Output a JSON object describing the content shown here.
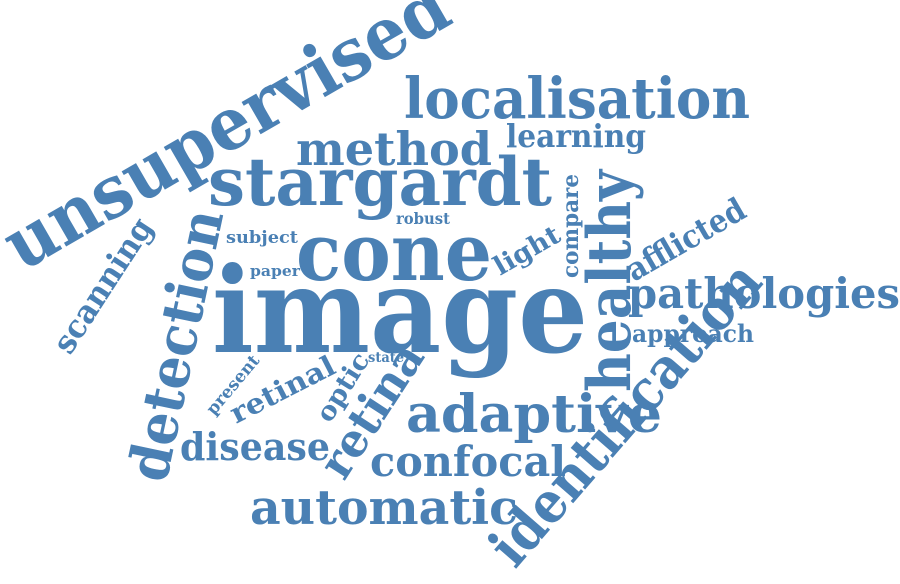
{
  "colors": {
    "word": "#4a80b4",
    "background": "#ffffff"
  },
  "words": {
    "image": "image",
    "cone": "cone",
    "stargardt": "stargardt",
    "unsupervised": "unsupervised",
    "localisation": "localisation",
    "method": "method",
    "learning": "learning",
    "healthy": "healthy",
    "pathologies": "pathologies",
    "afflicted": "afflicted",
    "approach": "approach",
    "compare": "compare",
    "light": "light",
    "robust": "robust",
    "subject": "subject",
    "paper": "paper",
    "scanning": "scanning",
    "detection": "detection",
    "present": "present",
    "retinal": "retinal",
    "optic": "optic",
    "state": "state",
    "retina": "retina",
    "adaptive": "adaptive",
    "identification": "identification",
    "disease": "disease",
    "confocal": "confocal",
    "automatic": "automatic"
  }
}
